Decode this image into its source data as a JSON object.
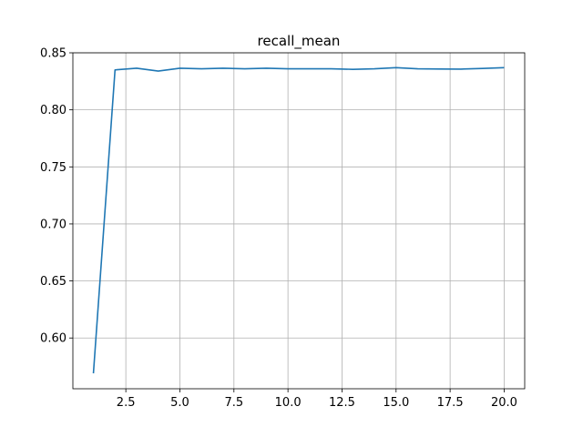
{
  "chart_data": {
    "type": "line",
    "title": "recall_mean",
    "xlabel": "",
    "ylabel": "",
    "xlim": [
      0.05,
      20.95
    ],
    "ylim": [
      0.5555,
      0.85
    ],
    "grid": true,
    "x_ticks": [
      2.5,
      5.0,
      7.5,
      10.0,
      12.5,
      15.0,
      17.5,
      20.0
    ],
    "x_tick_labels": [
      "2.5",
      "5.0",
      "7.5",
      "10.0",
      "12.5",
      "15.0",
      "17.5",
      "20.0"
    ],
    "y_ticks": [
      0.6,
      0.65,
      0.7,
      0.75,
      0.8,
      0.85
    ],
    "y_tick_labels": [
      "0.60",
      "0.65",
      "0.70",
      "0.75",
      "0.80",
      "0.85"
    ],
    "series": [
      {
        "color": "#1f77b4",
        "x": [
          1,
          2,
          3,
          4,
          5,
          6,
          7,
          8,
          9,
          10,
          11,
          12,
          13,
          14,
          15,
          16,
          17,
          18,
          19,
          20
        ],
        "values": [
          0.569,
          0.835,
          0.8365,
          0.834,
          0.8365,
          0.836,
          0.8365,
          0.836,
          0.8365,
          0.836,
          0.836,
          0.836,
          0.8355,
          0.836,
          0.837,
          0.836,
          0.8358,
          0.8357,
          0.8363,
          0.837
        ]
      }
    ]
  }
}
